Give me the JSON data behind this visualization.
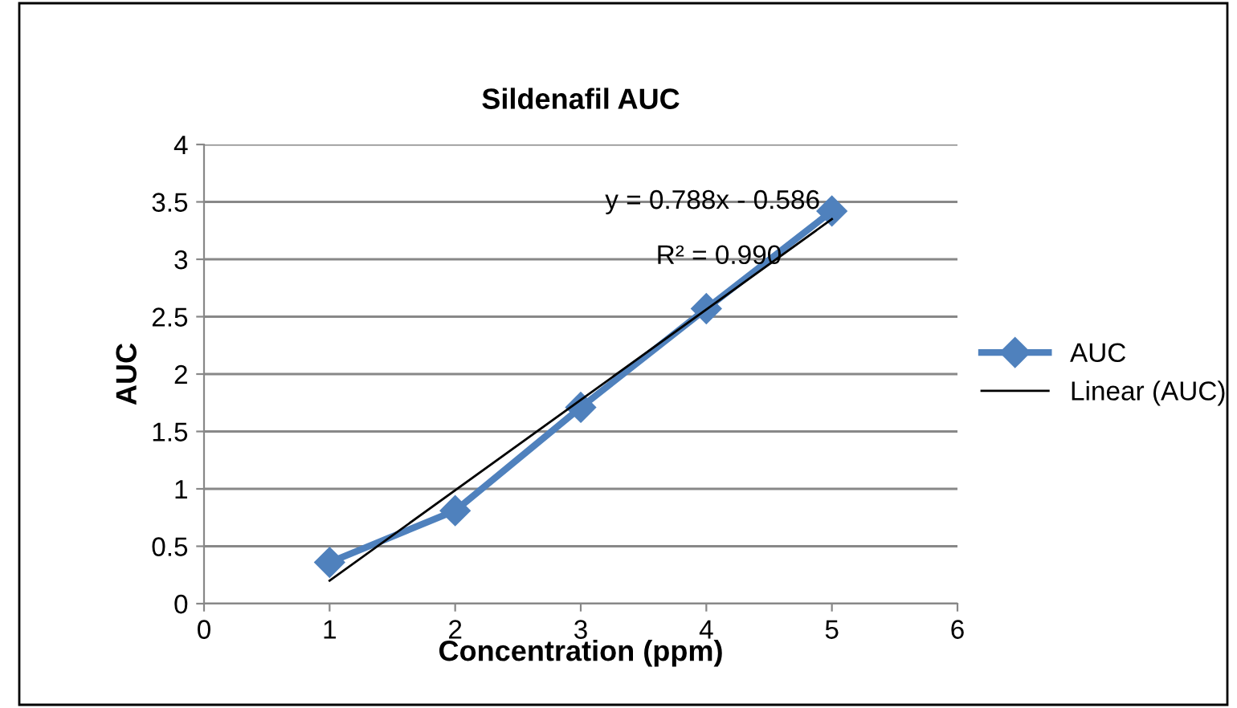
{
  "chart_data": {
    "type": "line",
    "title": "Sildenafil AUC",
    "xlabel": "Concentration (ppm)",
    "ylabel": "AUC",
    "x": [
      1,
      2,
      3,
      4,
      5
    ],
    "series": [
      {
        "name": "AUC",
        "color": "#4f81bd",
        "values": [
          0.36,
          0.81,
          1.71,
          2.57,
          3.42
        ],
        "marker": "diamond"
      },
      {
        "name": "Linear (AUC)",
        "color": "#000000",
        "x": [
          1,
          5
        ],
        "values": [
          0.2,
          3.35
        ],
        "marker": "none"
      }
    ],
    "annotations": [
      "y = 0.788x - 0.586",
      "R² = 0.990"
    ],
    "xlim": [
      0,
      6
    ],
    "xticks": [
      0,
      1,
      2,
      3,
      4,
      5,
      6
    ],
    "ylim": [
      0,
      4
    ],
    "yticks": [
      0,
      0.5,
      1,
      1.5,
      2,
      2.5,
      3,
      3.5,
      4
    ],
    "grid": "y",
    "legend": "right"
  }
}
